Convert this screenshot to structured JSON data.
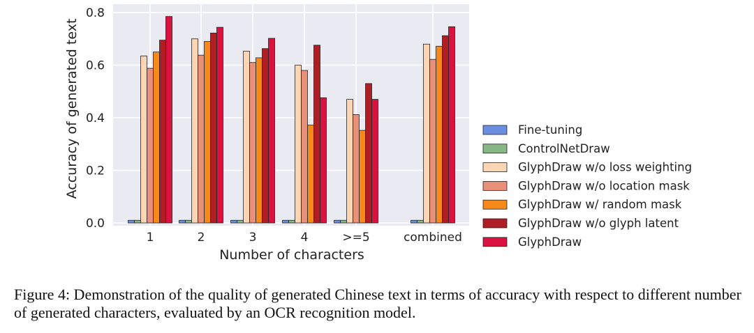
{
  "chart_data": {
    "type": "bar",
    "xlabel": "Number of characters",
    "ylabel": "Accuracy of generated text",
    "ylim": [
      0,
      0.8
    ],
    "yticks": [
      "0.0",
      "0.2",
      "0.4",
      "0.6",
      "0.8"
    ],
    "categories": [
      "1",
      "2",
      "3",
      "4",
      ">=5",
      "combined"
    ],
    "grid": true,
    "legend_position": "right",
    "series": [
      {
        "name": "Fine-tuning",
        "color": "#6a8fe0",
        "values": [
          0.01,
          0.01,
          0.01,
          0.01,
          0.01,
          0.01
        ]
      },
      {
        "name": "ControlNetDraw",
        "color": "#86b784",
        "values": [
          0.01,
          0.01,
          0.01,
          0.01,
          0.01,
          0.01
        ]
      },
      {
        "name": "GlyphDraw w/o loss weighting",
        "color": "#fcd6b4",
        "values": [
          0.635,
          0.7,
          0.653,
          0.6,
          0.47,
          0.68
        ]
      },
      {
        "name": "GlyphDraw w/o location mask",
        "color": "#e8907a",
        "values": [
          0.588,
          0.638,
          0.61,
          0.58,
          0.412,
          0.622
        ]
      },
      {
        "name": "GlyphDraw w/ random mask",
        "color": "#f7891b",
        "values": [
          0.65,
          0.69,
          0.628,
          0.372,
          0.352,
          0.672
        ]
      },
      {
        "name": "GlyphDraw w/o glyph latent",
        "color": "#b01e25",
        "values": [
          0.695,
          0.722,
          0.663,
          0.676,
          0.53,
          0.712
        ]
      },
      {
        "name": "GlyphDraw",
        "color": "#d9123f",
        "values": [
          0.785,
          0.744,
          0.702,
          0.476,
          0.47,
          0.746
        ]
      }
    ]
  },
  "caption": "Figure 4: Demonstration of the quality of generated Chinese text in terms of accuracy with respect to different number of generated characters, evaluated by an OCR recognition model."
}
